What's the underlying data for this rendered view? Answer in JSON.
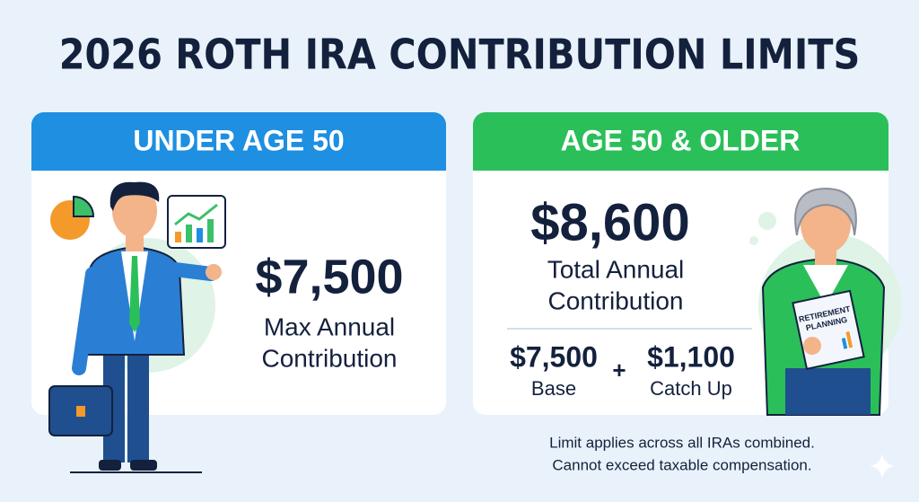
{
  "title": "2026 ROTH IRA CONTRIBUTION LIMITS",
  "cards": [
    {
      "header": "UNDER AGE 50",
      "amount": "$7,500",
      "label": [
        "Max Annual",
        "Contribution"
      ]
    },
    {
      "header": "AGE 50 & OLDER",
      "amount": "$8,600",
      "label": [
        "Total Annual",
        "Contribution"
      ],
      "breakdown": {
        "base": {
          "amount": "$7,500",
          "label": "Base"
        },
        "operator": "+",
        "catch_up": {
          "amount": "$1,100",
          "label": "Catch Up"
        }
      },
      "book": [
        "RETIREMENT",
        "PLANNING"
      ]
    }
  ],
  "notes": [
    "Limit applies across all IRAs combined.",
    "Cannot exceed taxable compensation."
  ]
}
